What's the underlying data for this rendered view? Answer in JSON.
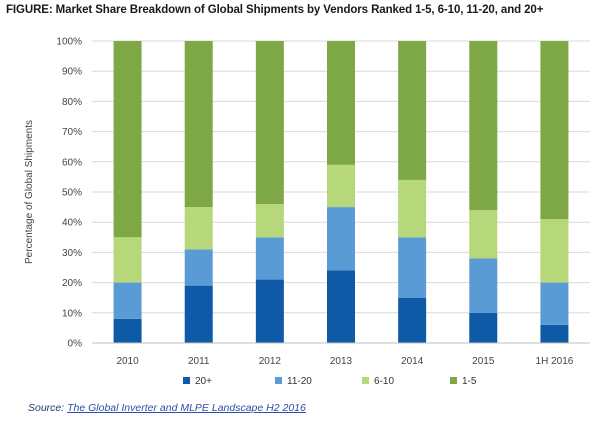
{
  "figure": {
    "title": "FIGURE: Market Share Breakdown of Global Shipments by Vendors Ranked 1-5, 6-10, 11-20, and 20+"
  },
  "source": {
    "prefix": "Source: ",
    "link_text": "The Global Inverter and MLPE Landscape H2 2016"
  },
  "chart_data": {
    "type": "bar",
    "stacked": true,
    "percent_stacked": true,
    "title": "FIGURE: Market Share Breakdown of Global Shipments by Vendors Ranked 1-5, 6-10, 11-20, and 20+",
    "xlabel": "",
    "ylabel": "Percentage of Global Shipments",
    "ylim": [
      0,
      100
    ],
    "yticks": [
      "0%",
      "10%",
      "20%",
      "30%",
      "40%",
      "50%",
      "60%",
      "70%",
      "80%",
      "90%",
      "100%"
    ],
    "grid": true,
    "legend_position": "bottom",
    "categories": [
      "2010",
      "2011",
      "2012",
      "2013",
      "2014",
      "2015",
      "1H 2016"
    ],
    "series": [
      {
        "name": "20+",
        "color": "#0f5aa6",
        "values": [
          8,
          19,
          21,
          24,
          15,
          10,
          6
        ]
      },
      {
        "name": "11-20",
        "color": "#5b9bd5",
        "values": [
          12,
          12,
          14,
          21,
          20,
          18,
          14
        ]
      },
      {
        "name": "6-10",
        "color": "#b6d77a",
        "values": [
          15,
          14,
          11,
          14,
          19,
          16,
          21
        ]
      },
      {
        "name": "1-5",
        "color": "#7ea845",
        "values": [
          65,
          55,
          54,
          41,
          46,
          56,
          59
        ]
      }
    ]
  }
}
